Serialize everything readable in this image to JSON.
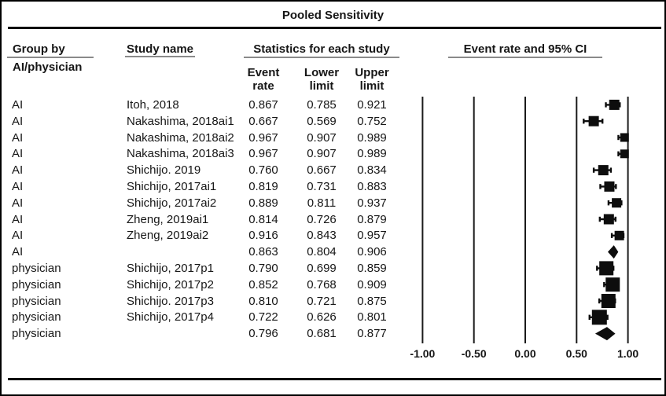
{
  "title": "Pooled Sensitivity",
  "header": {
    "group_by_line1": "Group by",
    "group_by_line2": "AI/physician",
    "study_name": "Study name",
    "statistics": "Statistics for each study",
    "plot_header": "Event rate and 95% CI",
    "stat_columns": [
      {
        "line1": "Event",
        "line2": "rate"
      },
      {
        "line1": "Lower",
        "line2": "limit"
      },
      {
        "line1": "Upper",
        "line2": "limit"
      }
    ]
  },
  "colors": {
    "text": "#161616",
    "marker": "#0d0d0d",
    "grid_line": "#1a1a1a",
    "header_underline": "#8a8a8a",
    "rule": "#000000"
  },
  "chart_data": {
    "type": "forest",
    "title": "Pooled Sensitivity",
    "x_axis": {
      "ticks": [
        -1.0,
        -0.5,
        0.0,
        0.5,
        1.0
      ],
      "tick_labels": [
        "-1.00",
        "-0.50",
        "0.00",
        "0.50",
        "1.00"
      ],
      "xlim": [
        -1.0,
        1.0
      ],
      "grid": "vertical-lines"
    },
    "legend": "none",
    "rows": [
      {
        "group": "AI",
        "study": "Itoh, 2018",
        "event_rate": 0.867,
        "lower": 0.785,
        "upper": 0.921,
        "marker": "square",
        "size": 13
      },
      {
        "group": "AI",
        "study": "Nakashima, 2018ai1",
        "event_rate": 0.667,
        "lower": 0.569,
        "upper": 0.752,
        "marker": "square",
        "size": 13
      },
      {
        "group": "AI",
        "study": "Nakashima, 2018ai2",
        "event_rate": 0.967,
        "lower": 0.907,
        "upper": 0.989,
        "marker": "square",
        "size": 11
      },
      {
        "group": "AI",
        "study": "Nakashima, 2018ai3",
        "event_rate": 0.967,
        "lower": 0.907,
        "upper": 0.989,
        "marker": "square",
        "size": 11
      },
      {
        "group": "AI",
        "study": "Shichijo. 2019",
        "event_rate": 0.76,
        "lower": 0.667,
        "upper": 0.834,
        "marker": "square",
        "size": 13
      },
      {
        "group": "AI",
        "study": "Shichijo, 2017ai1",
        "event_rate": 0.819,
        "lower": 0.731,
        "upper": 0.883,
        "marker": "square",
        "size": 13
      },
      {
        "group": "AI",
        "study": "Shichijo, 2017ai2",
        "event_rate": 0.889,
        "lower": 0.811,
        "upper": 0.937,
        "marker": "square",
        "size": 12
      },
      {
        "group": "AI",
        "study": "Zheng, 2019ai1",
        "event_rate": 0.814,
        "lower": 0.726,
        "upper": 0.879,
        "marker": "square",
        "size": 13
      },
      {
        "group": "AI",
        "study": "Zheng, 2019ai2",
        "event_rate": 0.916,
        "lower": 0.843,
        "upper": 0.957,
        "marker": "square",
        "size": 12
      },
      {
        "group": "AI",
        "study": "",
        "event_rate": 0.863,
        "lower": 0.804,
        "upper": 0.906,
        "marker": "diamond",
        "size": null
      },
      {
        "group": "physician",
        "study": "Shichijo, 2017p1",
        "event_rate": 0.79,
        "lower": 0.699,
        "upper": 0.859,
        "marker": "square",
        "size": 18
      },
      {
        "group": "physician",
        "study": "Shichijo, 2017p2",
        "event_rate": 0.852,
        "lower": 0.768,
        "upper": 0.909,
        "marker": "square",
        "size": 18
      },
      {
        "group": "physician",
        "study": "Shichijo. 2017p3",
        "event_rate": 0.81,
        "lower": 0.721,
        "upper": 0.875,
        "marker": "square",
        "size": 18
      },
      {
        "group": "physician",
        "study": "Shichijo, 2017p4",
        "event_rate": 0.722,
        "lower": 0.626,
        "upper": 0.801,
        "marker": "square",
        "size": 19
      },
      {
        "group": "physician",
        "study": "",
        "event_rate": 0.796,
        "lower": 0.681,
        "upper": 0.877,
        "marker": "diamond",
        "size": null
      }
    ]
  }
}
